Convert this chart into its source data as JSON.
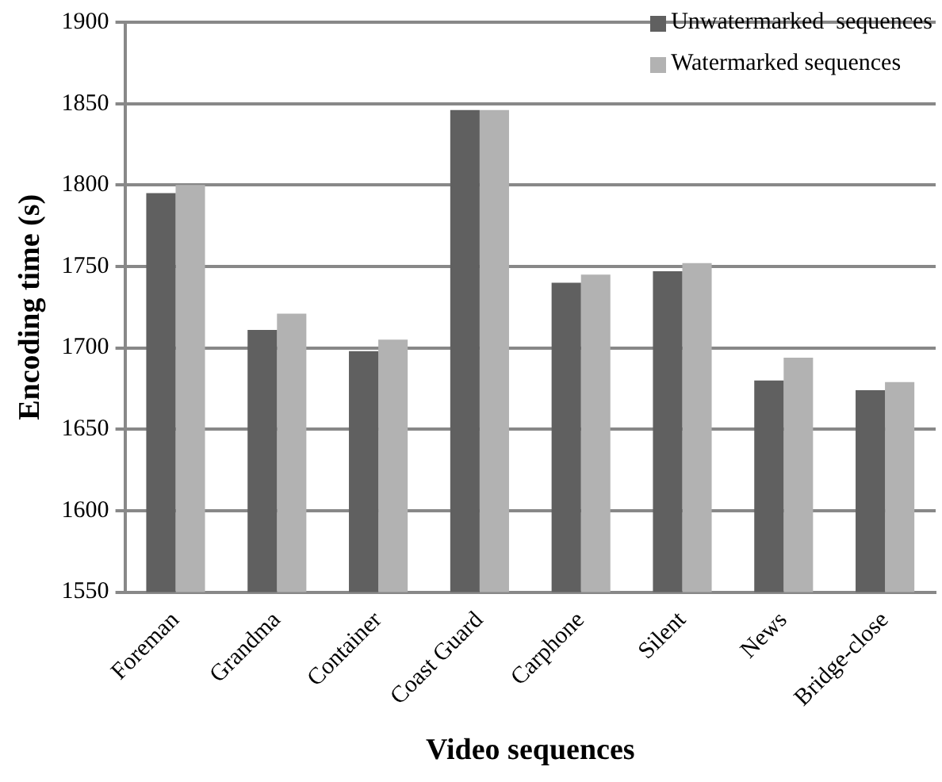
{
  "chart_data": {
    "type": "bar",
    "xlabel": "Video sequences",
    "ylabel": "Encoding time (s)",
    "categories": [
      "Foreman",
      "Grandma",
      "Container",
      "Coast Guard",
      "Carphone",
      "Silent",
      "News",
      "Bridge-close"
    ],
    "series": [
      {
        "name": "Unwatermarked  sequences",
        "color": "#606060",
        "values": [
          1795,
          1711,
          1698,
          1846,
          1740,
          1747,
          1680,
          1674
        ]
      },
      {
        "name": "Watermarked sequences",
        "color": "#b2b2b2",
        "values": [
          1800,
          1721,
          1705,
          1846,
          1745,
          1752,
          1694,
          1679
        ]
      }
    ],
    "ylim": [
      1550,
      1900
    ],
    "yticks": [
      1550,
      1600,
      1650,
      1700,
      1750,
      1800,
      1850,
      1900
    ],
    "grid": "y",
    "legend": "top right"
  }
}
